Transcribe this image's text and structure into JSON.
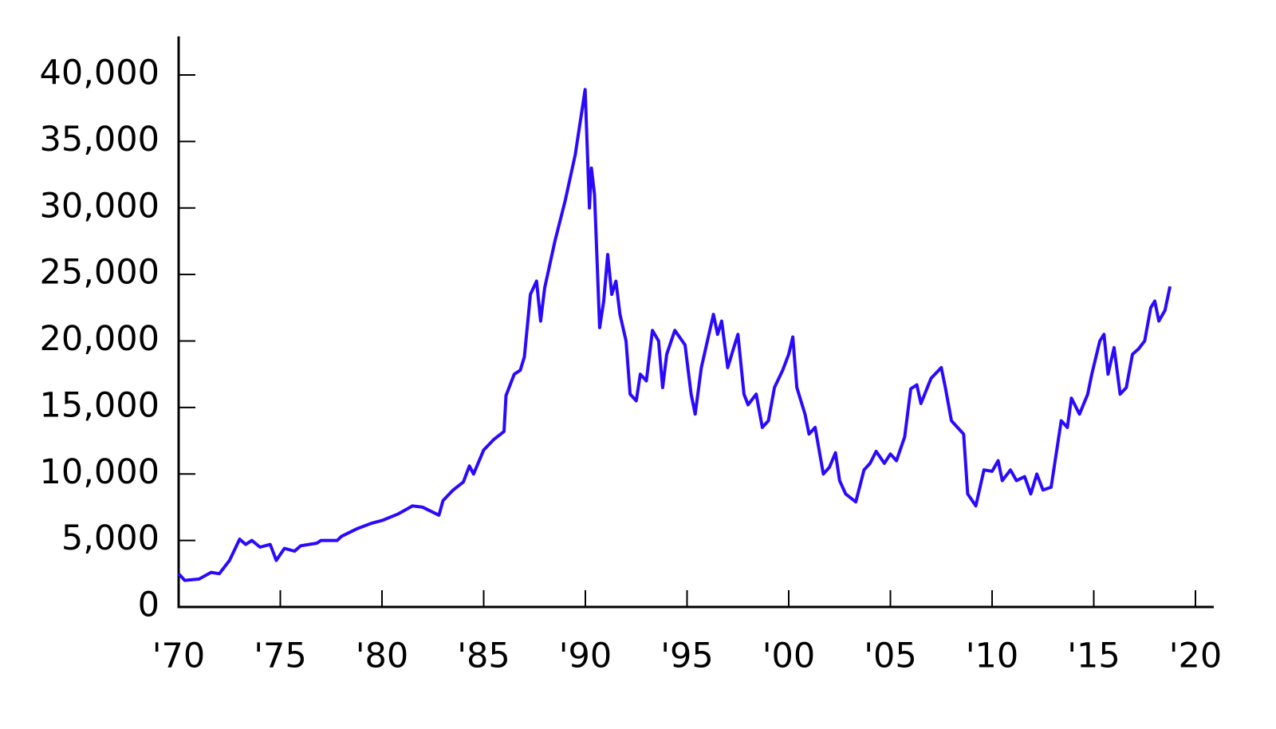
{
  "chart_data": {
    "type": "line",
    "color": "#2a0aff",
    "x": [
      1970.0,
      1970.3,
      1971.0,
      1971.6,
      1972.0,
      1972.5,
      1973.0,
      1973.3,
      1973.6,
      1974.0,
      1974.5,
      1974.8,
      1975.2,
      1975.7,
      1976.0,
      1976.8,
      1977.0,
      1977.8,
      1978.0,
      1978.8,
      1979.5,
      1980.0,
      1980.8,
      1981.5,
      1982.0,
      1982.8,
      1983.0,
      1983.5,
      1984.0,
      1984.3,
      1984.5,
      1985.0,
      1985.5,
      1986.0,
      1986.1,
      1986.5,
      1986.8,
      1987.0,
      1987.3,
      1987.6,
      1987.8,
      1988.0,
      1988.5,
      1989.0,
      1989.5,
      1989.99,
      1990.2,
      1990.3,
      1990.45,
      1990.7,
      1990.9,
      1991.1,
      1991.3,
      1991.5,
      1991.7,
      1992.0,
      1992.2,
      1992.5,
      1992.7,
      1993.0,
      1993.3,
      1993.6,
      1993.8,
      1994.0,
      1994.4,
      1994.9,
      1995.2,
      1995.4,
      1995.7,
      1996.0,
      1996.3,
      1996.5,
      1996.7,
      1997.0,
      1997.3,
      1997.5,
      1997.8,
      1998.0,
      1998.4,
      1998.7,
      1999.0,
      1999.3,
      1999.7,
      2000.0,
      2000.2,
      2000.4,
      2000.8,
      2001.0,
      2001.3,
      2001.7,
      2002.0,
      2002.3,
      2002.5,
      2002.8,
      2003.3,
      2003.7,
      2004.0,
      2004.3,
      2004.7,
      2005.0,
      2005.3,
      2005.7,
      2006.0,
      2006.3,
      2006.5,
      2007.0,
      2007.5,
      2007.7,
      2008.0,
      2008.3,
      2008.6,
      2008.8,
      2009.2,
      2009.6,
      2010.0,
      2010.3,
      2010.5,
      2010.9,
      2011.2,
      2011.6,
      2011.9,
      2012.2,
      2012.5,
      2012.9,
      2013.2,
      2013.4,
      2013.7,
      2013.9,
      2014.3,
      2014.7,
      2014.9,
      2015.3,
      2015.5,
      2015.7,
      2016.0,
      2016.3,
      2016.6,
      2016.9,
      2017.2,
      2017.5,
      2017.8,
      2018.0,
      2018.2,
      2018.5,
      2018.75
    ],
    "values": [
      2500,
      2000,
      2100,
      2600,
      2500,
      3500,
      5100,
      4700,
      5000,
      4500,
      4700,
      3500,
      4400,
      4200,
      4600,
      4800,
      5000,
      5000,
      5300,
      5900,
      6300,
      6500,
      7000,
      7600,
      7500,
      6900,
      8000,
      8800,
      9400,
      10600,
      10000,
      11800,
      12600,
      13200,
      15900,
      17500,
      17800,
      18800,
      23500,
      24500,
      21500,
      24000,
      27500,
      30500,
      34000,
      38900,
      30000,
      33000,
      31000,
      21000,
      23000,
      26500,
      23500,
      24500,
      22000,
      20000,
      16000,
      15500,
      17500,
      17000,
      20800,
      20000,
      16500,
      19000,
      20800,
      19700,
      16000,
      14500,
      18000,
      20000,
      22000,
      20500,
      21500,
      18000,
      19500,
      20500,
      16000,
      15200,
      16000,
      13500,
      14000,
      16500,
      17800,
      19000,
      20300,
      16500,
      14500,
      13000,
      13500,
      10000,
      10500,
      11600,
      9500,
      8500,
      7900,
      10300,
      10800,
      11700,
      10800,
      11500,
      11000,
      12800,
      16400,
      16700,
      15300,
      17200,
      18000,
      16500,
      14000,
      13500,
      13000,
      8500,
      7600,
      10300,
      10200,
      11000,
      9500,
      10300,
      9500,
      9800,
      8500,
      10000,
      8800,
      9000,
      12000,
      14000,
      13500,
      15700,
      14500,
      16000,
      17500,
      20000,
      20500,
      17500,
      19500,
      16000,
      16500,
      19000,
      19400,
      20000,
      22500,
      23000,
      21500,
      22300,
      24100
    ],
    "xlim": [
      1970,
      2020.9
    ],
    "ylim": [
      0,
      42900
    ],
    "xticks": [
      {
        "value": 1970,
        "label": "'70"
      },
      {
        "value": 1975,
        "label": "'75"
      },
      {
        "value": 1980,
        "label": "'80"
      },
      {
        "value": 1985,
        "label": "'85"
      },
      {
        "value": 1990,
        "label": "'90"
      },
      {
        "value": 1995,
        "label": "'95"
      },
      {
        "value": 2000,
        "label": "'00"
      },
      {
        "value": 2005,
        "label": "'05"
      },
      {
        "value": 2010,
        "label": "'10"
      },
      {
        "value": 2015,
        "label": "'15"
      },
      {
        "value": 2020,
        "label": "'20"
      }
    ],
    "yticks": [
      0,
      {
        "value": 5000,
        "label": "5,000"
      },
      {
        "value": 10000,
        "label": "10,000"
      },
      {
        "value": 15000,
        "label": "15,000"
      },
      {
        "value": 20000,
        "label": "20,000"
      },
      {
        "value": 25000,
        "label": "25,000"
      },
      {
        "value": 30000,
        "label": "30,000"
      },
      {
        "value": 35000,
        "label": "35,000"
      },
      {
        "value": 40000,
        "label": "40,000"
      }
    ]
  }
}
